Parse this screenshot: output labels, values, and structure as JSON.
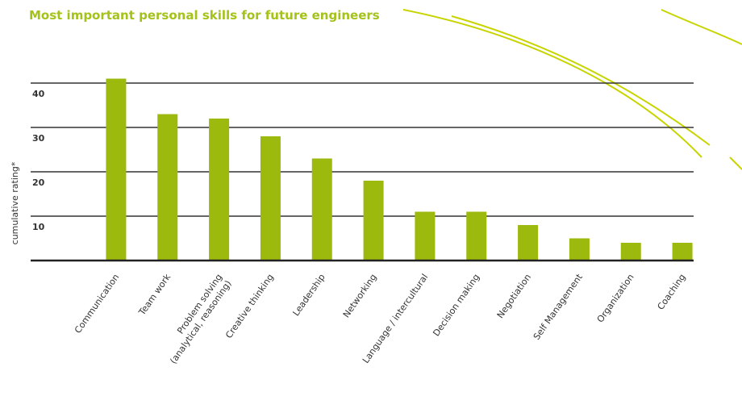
{
  "chart_data": {
    "type": "bar",
    "title": "Most important personal skills for future engineers",
    "y_label": "cumulative rating*",
    "categories": [
      "Communication",
      "Team work",
      "Problem solving\n(analytical, reasoning)",
      "Creative thinking",
      "Leadership",
      "Networking",
      "Language / intercultural",
      "Decision making",
      "Negotiation",
      "Self Management",
      "Organization",
      "Coaching"
    ],
    "values": [
      41,
      33,
      32,
      28,
      23,
      18,
      11,
      11,
      8,
      5,
      4,
      4
    ],
    "color": "#9cb90e",
    "ylim": [
      0,
      42
    ],
    "yticks": [
      10,
      20,
      30,
      40
    ],
    "grid": true
  }
}
